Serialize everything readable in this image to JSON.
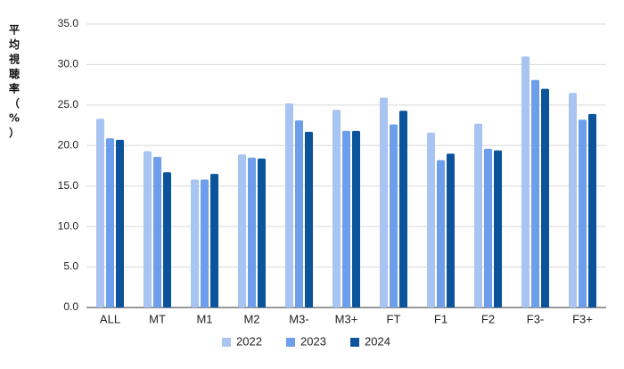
{
  "chart_data": {
    "type": "bar",
    "title": "",
    "xlabel": "",
    "ylabel": "平均視聴率（%）",
    "categories": [
      "ALL",
      "MT",
      "M1",
      "M2",
      "M3-",
      "M3+",
      "FT",
      "F1",
      "F2",
      "F3-",
      "F3+"
    ],
    "ylim": [
      0,
      35
    ],
    "yticks": [
      "0.0",
      "5.0",
      "10.0",
      "15.0",
      "20.0",
      "25.0",
      "30.0",
      "35.0"
    ],
    "grid": true,
    "legend_position": "bottom",
    "series": [
      {
        "name": "2022",
        "color": "#a8c4f3",
        "values": [
          23.3,
          19.3,
          15.8,
          18.9,
          25.2,
          24.4,
          25.9,
          21.6,
          22.7,
          31.0,
          26.5
        ]
      },
      {
        "name": "2023",
        "color": "#6d9eeb",
        "values": [
          20.9,
          18.6,
          15.8,
          18.5,
          23.1,
          21.8,
          22.6,
          18.2,
          19.6,
          28.1,
          23.2
        ]
      },
      {
        "name": "2024",
        "color": "#0b549c",
        "values": [
          20.7,
          16.7,
          16.5,
          18.4,
          21.7,
          21.8,
          24.3,
          19.0,
          19.4,
          27.0,
          23.9
        ]
      }
    ]
  }
}
